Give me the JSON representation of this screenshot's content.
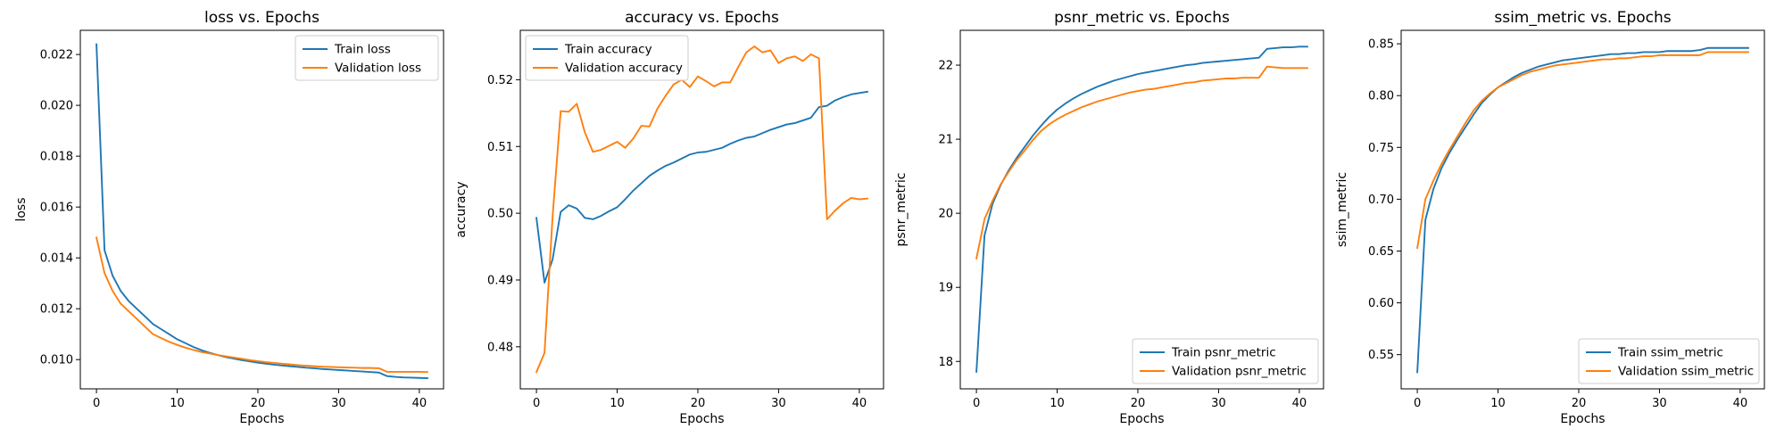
{
  "chart_data": [
    {
      "type": "line",
      "title": "loss vs. Epochs",
      "xlabel": "Epochs",
      "ylabel": "loss",
      "xlim": [
        -2,
        43
      ],
      "ylim": [
        0.00885,
        0.02295
      ],
      "xticks": [
        0,
        10,
        20,
        30,
        40
      ],
      "yticks": [
        0.01,
        0.012,
        0.014,
        0.016,
        0.018,
        0.02,
        0.022
      ],
      "ytick_decimals": 3,
      "grid": false,
      "legend_position": "top-right",
      "series": [
        {
          "name": "Train loss",
          "color": "#1f77b4",
          "values": [
            0.0224,
            0.0143,
            0.0133,
            0.0127,
            0.0123,
            0.012,
            0.0117,
            0.0114,
            0.0112,
            0.011,
            0.0108,
            0.01065,
            0.0105,
            0.01037,
            0.01027,
            0.01018,
            0.0101,
            0.01004,
            0.00998,
            0.00993,
            0.00988,
            0.00984,
            0.0098,
            0.00977,
            0.00974,
            0.00971,
            0.00968,
            0.00966,
            0.00963,
            0.00961,
            0.00959,
            0.00957,
            0.00955,
            0.00953,
            0.00951,
            0.00949,
            0.00935,
            0.00932,
            0.0093,
            0.00929,
            0.00928,
            0.00927
          ]
        },
        {
          "name": "Validation loss",
          "color": "#ff7f0e",
          "values": [
            0.0148,
            0.0134,
            0.0127,
            0.0122,
            0.0119,
            0.0116,
            0.0113,
            0.011,
            0.01085,
            0.0107,
            0.01058,
            0.01047,
            0.01038,
            0.0103,
            0.01024,
            0.01018,
            0.01013,
            0.01008,
            0.01003,
            0.00998,
            0.00994,
            0.0099,
            0.00987,
            0.00984,
            0.00981,
            0.00978,
            0.00976,
            0.00974,
            0.00972,
            0.00971,
            0.0097,
            0.00969,
            0.00968,
            0.00967,
            0.00967,
            0.00966,
            0.00952,
            0.00952,
            0.00952,
            0.00952,
            0.00952,
            0.00951
          ]
        }
      ]
    },
    {
      "type": "line",
      "title": "accuracy vs. Epochs",
      "xlabel": "Epochs",
      "ylabel": "accuracy",
      "xlim": [
        -2,
        43
      ],
      "ylim": [
        0.4737,
        0.5274
      ],
      "xticks": [
        0,
        10,
        20,
        30,
        40
      ],
      "yticks": [
        0.48,
        0.49,
        0.5,
        0.51,
        0.52
      ],
      "ytick_decimals": 2,
      "grid": false,
      "legend_position": "top-left",
      "series": [
        {
          "name": "Train accuracy",
          "color": "#1f77b4",
          "values": [
            0.4993,
            0.4896,
            0.4931,
            0.5002,
            0.5012,
            0.5007,
            0.4993,
            0.4991,
            0.4996,
            0.5003,
            0.5009,
            0.5021,
            0.5034,
            0.5045,
            0.5056,
            0.5064,
            0.5071,
            0.5076,
            0.5082,
            0.5088,
            0.5091,
            0.5092,
            0.5095,
            0.5098,
            0.5104,
            0.5109,
            0.5113,
            0.5115,
            0.512,
            0.5125,
            0.5129,
            0.5133,
            0.5135,
            0.5139,
            0.5143,
            0.5159,
            0.5161,
            0.5169,
            0.5174,
            0.5178,
            0.518,
            0.5182
          ]
        },
        {
          "name": "Validation accuracy",
          "color": "#ff7f0e",
          "values": [
            0.4762,
            0.4791,
            0.4995,
            0.5153,
            0.5152,
            0.5164,
            0.5121,
            0.5092,
            0.5095,
            0.5101,
            0.5107,
            0.5098,
            0.5112,
            0.5131,
            0.513,
            0.5157,
            0.5176,
            0.5193,
            0.52,
            0.5189,
            0.5205,
            0.5198,
            0.519,
            0.5196,
            0.5196,
            0.5219,
            0.5241,
            0.525,
            0.5241,
            0.5244,
            0.5225,
            0.5232,
            0.5235,
            0.5228,
            0.5238,
            0.5232,
            0.4991,
            0.5004,
            0.5015,
            0.5023,
            0.5021,
            0.5022
          ]
        }
      ]
    },
    {
      "type": "line",
      "title": "psnr_metric vs. Epochs",
      "xlabel": "Epochs",
      "ylabel": "psnr_metric",
      "xlim": [
        -2,
        43
      ],
      "ylim": [
        17.63,
        22.47
      ],
      "xticks": [
        0,
        10,
        20,
        30,
        40
      ],
      "yticks": [
        18,
        19,
        20,
        21,
        22
      ],
      "ytick_decimals": 0,
      "grid": false,
      "legend_position": "bottom-right",
      "series": [
        {
          "name": "Train psnr_metric",
          "color": "#1f77b4",
          "values": [
            17.86,
            19.7,
            20.13,
            20.38,
            20.58,
            20.75,
            20.9,
            21.05,
            21.18,
            21.3,
            21.4,
            21.48,
            21.55,
            21.61,
            21.66,
            21.71,
            21.75,
            21.79,
            21.82,
            21.85,
            21.88,
            21.9,
            21.92,
            21.94,
            21.96,
            21.98,
            22.0,
            22.01,
            22.03,
            22.04,
            22.05,
            22.06,
            22.07,
            22.08,
            22.09,
            22.1,
            22.22,
            22.23,
            22.24,
            22.24,
            22.25,
            22.25
          ]
        },
        {
          "name": "Validation psnr_metric",
          "color": "#ff7f0e",
          "values": [
            19.39,
            19.92,
            20.17,
            20.39,
            20.56,
            20.72,
            20.85,
            20.99,
            21.11,
            21.2,
            21.27,
            21.33,
            21.38,
            21.43,
            21.47,
            21.51,
            21.54,
            21.57,
            21.6,
            21.63,
            21.65,
            21.67,
            21.68,
            21.7,
            21.72,
            21.74,
            21.76,
            21.77,
            21.79,
            21.8,
            21.81,
            21.82,
            21.82,
            21.83,
            21.83,
            21.83,
            21.98,
            21.97,
            21.96,
            21.96,
            21.96,
            21.96
          ]
        }
      ]
    },
    {
      "type": "line",
      "title": "ssim_metric vs. Epochs",
      "xlabel": "Epochs",
      "ylabel": "ssim_metric",
      "xlim": [
        -2,
        43
      ],
      "ylim": [
        0.517,
        0.863
      ],
      "xticks": [
        0,
        10,
        20,
        30,
        40
      ],
      "yticks": [
        0.55,
        0.6,
        0.65,
        0.7,
        0.75,
        0.8,
        0.85
      ],
      "ytick_decimals": 2,
      "grid": false,
      "legend_position": "bottom-right",
      "series": [
        {
          "name": "Train ssim_metric",
          "color": "#1f77b4",
          "values": [
            0.533,
            0.68,
            0.71,
            0.73,
            0.745,
            0.758,
            0.77,
            0.782,
            0.793,
            0.801,
            0.808,
            0.813,
            0.818,
            0.822,
            0.825,
            0.828,
            0.83,
            0.832,
            0.834,
            0.835,
            0.836,
            0.837,
            0.838,
            0.839,
            0.84,
            0.84,
            0.841,
            0.841,
            0.842,
            0.842,
            0.842,
            0.843,
            0.843,
            0.843,
            0.843,
            0.844,
            0.846,
            0.846,
            0.846,
            0.846,
            0.846,
            0.846
          ]
        },
        {
          "name": "Validation ssim_metric",
          "color": "#ff7f0e",
          "values": [
            0.653,
            0.7,
            0.718,
            0.734,
            0.748,
            0.761,
            0.774,
            0.786,
            0.795,
            0.802,
            0.808,
            0.812,
            0.816,
            0.82,
            0.823,
            0.825,
            0.827,
            0.829,
            0.83,
            0.831,
            0.832,
            0.833,
            0.834,
            0.835,
            0.835,
            0.836,
            0.836,
            0.837,
            0.838,
            0.838,
            0.839,
            0.839,
            0.839,
            0.839,
            0.839,
            0.839,
            0.842,
            0.842,
            0.842,
            0.842,
            0.842,
            0.842
          ]
        }
      ]
    }
  ]
}
